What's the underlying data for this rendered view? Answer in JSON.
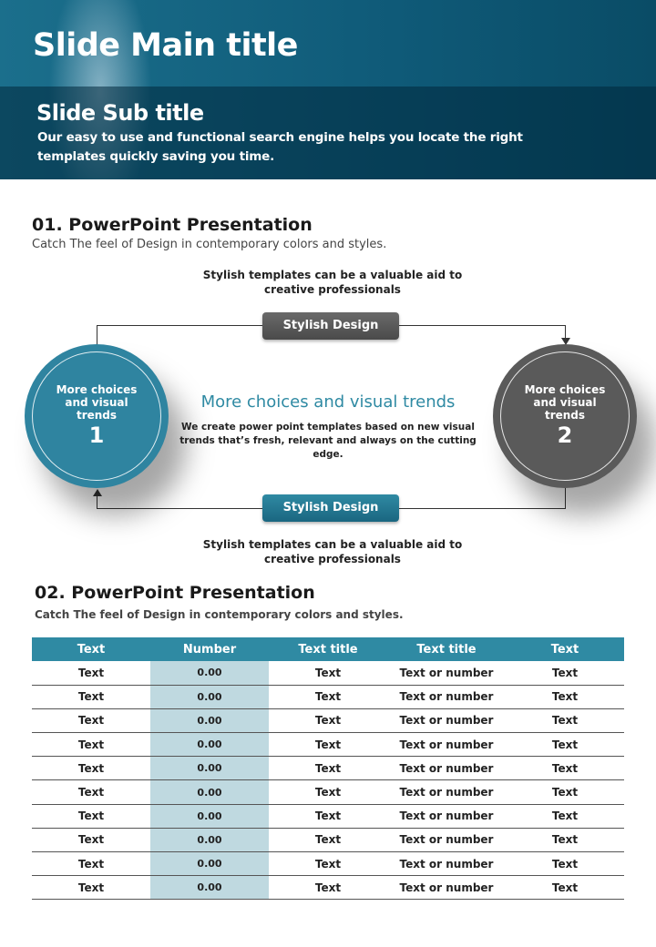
{
  "header": {
    "main_title": "Slide Main title",
    "sub_title": "Slide Sub title",
    "sub_text": "Our easy to use and functional search engine helps you locate the right templates quickly saving you time."
  },
  "section1": {
    "title": "01. PowerPoint Presentation",
    "subtitle": "Catch The feel of Design in contemporary colors and styles.",
    "caption_top": "Stylish templates can be a valuable aid to creative professionals",
    "caption_bottom": "Stylish templates can be a valuable aid to creative professionals",
    "pill_top": "Stylish Design",
    "pill_bottom": "Stylish Design",
    "circle1": {
      "text": "More choices and visual trends",
      "number": "1",
      "color": "#2f84a0"
    },
    "circle2": {
      "text": "More choices and visual trends",
      "number": "2",
      "color": "#5a5a5a"
    },
    "center_title": "More choices and visual trends",
    "center_text": "We create power point templates based on new visual trends that’s fresh, relevant and always on the cutting edge."
  },
  "section2": {
    "title": "02. PowerPoint Presentation",
    "subtitle": "Catch The feel of Design in contemporary colors and styles.",
    "table": {
      "headers": [
        "Text",
        "Number",
        "Text title",
        "Text title",
        "Text"
      ],
      "rows": [
        [
          "Text",
          "0.00",
          "Text",
          "Text or number",
          "Text"
        ],
        [
          "Text",
          "0.00",
          "Text",
          "Text or number",
          "Text"
        ],
        [
          "Text",
          "0.00",
          "Text",
          "Text or number",
          "Text"
        ],
        [
          "Text",
          "0.00",
          "Text",
          "Text or number",
          "Text"
        ],
        [
          "Text",
          "0.00",
          "Text",
          "Text or number",
          "Text"
        ],
        [
          "Text",
          "0.00",
          "Text",
          "Text or number",
          "Text"
        ],
        [
          "Text",
          "0.00",
          "Text",
          "Text or number",
          "Text"
        ],
        [
          "Text",
          "0.00",
          "Text",
          "Text or number",
          "Text"
        ],
        [
          "Text",
          "0.00",
          "Text",
          "Text or number",
          "Text"
        ],
        [
          "Text",
          "0.00",
          "Text",
          "Text or number",
          "Text"
        ]
      ]
    }
  }
}
